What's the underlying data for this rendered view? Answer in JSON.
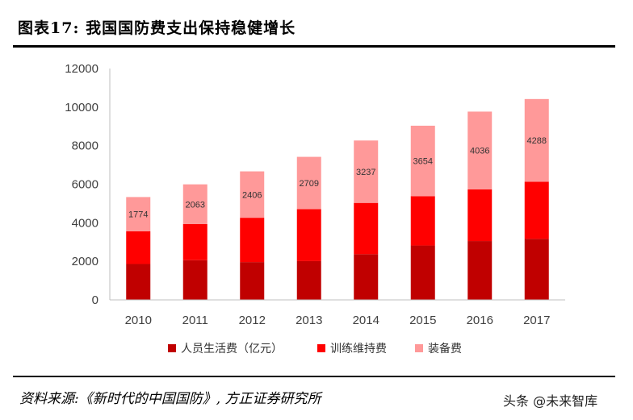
{
  "figure": {
    "title": "图表17:  我国国防费支出保持稳健增长",
    "source": "资料来源:《新时代的中国国防》, 方正证券研究所",
    "watermark": "头条 @未来智库"
  },
  "chart_data": {
    "type": "bar",
    "stacked": true,
    "categories": [
      "2010",
      "2011",
      "2012",
      "2013",
      "2014",
      "2015",
      "2016",
      "2017"
    ],
    "series": [
      {
        "name": "人员生活费（亿元）",
        "color": "#c00000",
        "values": [
          1860,
          2060,
          1960,
          2010,
          2370,
          2820,
          3050,
          3170
        ]
      },
      {
        "name": "训练维持费",
        "color": "#ff0000",
        "values": [
          1700,
          1870,
          2300,
          2700,
          2660,
          2560,
          2680,
          2960
        ]
      },
      {
        "name": "装备费",
        "color": "#ff9999",
        "values": [
          1774,
          2063,
          2406,
          2709,
          3237,
          3654,
          4036,
          4288
        ]
      }
    ],
    "data_labels": [
      "1774",
      "2063",
      "2406",
      "2709",
      "3237",
      "3654",
      "4036",
      "4288"
    ],
    "ylim": [
      0,
      12000
    ],
    "yticks": [
      "0",
      "2000",
      "4000",
      "6000",
      "8000",
      "10000",
      "12000"
    ],
    "legend_position": "bottom"
  }
}
